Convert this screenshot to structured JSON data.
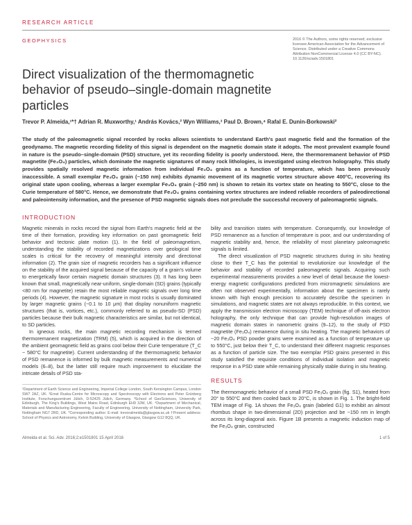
{
  "header": {
    "article_type": "RESEARCH ARTICLE",
    "section": "GEOPHYSICS",
    "rights": "2016 © The Authors, some rights reserved; exclusive licensee American Association for the Advancement of Science. Distributed under a Creative Commons Attribution NonCommercial License 4.0 (CC BY-NC). 10.1126/sciadv.1501801"
  },
  "title": "Direct visualization of the thermomagnetic behavior of pseudo–single-domain magnetite particles",
  "authors_html": "Trevor P. Almeida,¹*† Adrian R. Muxworthy,¹ András Kovács,² Wyn Williams,³ Paul D. Brown,⁴ Rafal E. Dunin-Borkowski²",
  "abstract": "The study of the paleomagnetic signal recorded by rocks allows scientists to understand Earth's past magnetic field and the formation of the geodynamo. The magnetic recording fidelity of this signal is dependent on the magnetic domain state it adopts. The most prevalent example found in nature is the pseudo–single-domain (PSD) structure, yet its recording fidelity is poorly understood. Here, the thermoremanent behavior of PSD magnetite (Fe₃O₄) particles, which dominate the magnetic signatures of many rock lithologies, is investigated using electron holography. This study provides spatially resolved magnetic information from individual Fe₃O₄ grains as a function of temperature, which has been previously inaccessible. A small exemplar Fe₃O₄ grain (~150 nm) exhibits dynamic movement of its magnetic vortex structure above 400°C, recovering its original state upon cooling, whereas a larger exemplar Fe₃O₄ grain (~250 nm) is shown to retain its vortex state on heating to 550°C, close to the Curie temperature of 580°C. Hence, we demonstrate that Fe₃O₄ grains containing vortex structures are indeed reliable recorders of paleodirectional and paleointensity information, and the presence of PSD magnetic signals does not preclude the successful recovery of paleomagnetic signals.",
  "sections": {
    "introduction": {
      "heading": "INTRODUCTION",
      "col1_p1": "Magnetic minerals in rocks record the signal from Earth's magnetic field at the time of their formation, providing key information on past geomagnetic field behavior and tectonic plate motion (1). In the field of paleomagnetism, understanding the stability of recorded magnetizations over geological time scales is critical for the recovery of meaningful intensity and directional information (2). The grain size of magnetic recorders has a significant influence on the stability of the acquired signal because of the capacity of a grain's volume to energetically favor certain magnetic domain structures (3). It has long been known that small, magnetically near-uniform, single-domain (SD) grains (typically <80 nm for magnetite) retain the most reliable magnetic signals over long time periods (4). However, the magnetic signature in most rocks is usually dominated by larger magnetic grains (~0.1 to 10 μm) that display nonuniform magnetic structures (that is, vortices, etc.), commonly referred to as pseudo-SD (PSD) particles because their bulk magnetic characteristics are similar, but not identical, to SD particles.",
      "col1_p2": "In igneous rocks, the main magnetic recording mechanism is termed thermoremanent magnetization (TRM) (5), which is acquired in the direction of the ambient geomagnetic field as grains cool below their Curie temperature (T_C ~ 580°C for magnetite). Current understanding of the thermomagnetic behavior of PSD remanence is informed by bulk magnetic measurements and numerical models (6–8), but the latter still require much improvement to elucidate the intricate details of PSD sta-",
      "col2_p1": "bility and transition states with temperature. Consequently, our knowledge of PSD remanence as a function of temperature is poor, and our understanding of magnetic stability and, hence, the reliability of most planetary paleomagnetic signals is limited.",
      "col2_p2": "The direct visualization of PSD magnetic structures during in situ heating close to their T_C has the potential to revolutionize our knowledge of the behavior and stability of recorded paleomagnetic signals. Acquiring such experimental measurements provides a new level of detail because the lowest-energy magnetic configurations predicted from micromagnetic simulations are often not observed experimentally, information about the specimen is rarely known with high enough precision to accurately describe the specimen in simulations, and magnetic states are not always reproducible. In this context, we apply the transmission electron microscopy (TEM) technique of off-axis electron holography, the only technique that can provide high-resolution images of magnetic domain states in nanometric grains (9–12), to the study of PSD magnetite (Fe₃O₄) remanence during in situ heating. The magnetic behaviors of ~20 Fe₃O₄ PSD powder grains were examined as a function of temperature up to 550°C, just below their T_C, to understand their different magnetic responses as a function of particle size. The two exemplar PSD grains presented in this study satisfied the requisite conditions of individual isolation and magnetic response in a PSD state while remaining physically stable during in situ heating."
    },
    "results": {
      "heading": "RESULTS",
      "col2_p1": "The thermomagnetic behavior of a small PSD Fe₃O₄ grain (fig. S1), heated from 20° to 550°C and then cooled back to 20°C, is shown in Fig. 1. The bright-field TEM image of Fig. 1A shows the Fe₃O₄ grain (labeled G1) to exhibit an almost rhombus shape in two-dimensional (2D) projection and be ~150 nm in length across its long-diagonal axis. Figure 1B presents a magnetic induction map of the Fe₃O₄ grain, constructed"
    }
  },
  "footnotes": "¹Department of Earth Science and Engineering, Imperial College London, South Kensington Campus, London SW7 2AZ, UK. ²Ernst Ruska-Centre for Microscopy and Spectroscopy with Electrons and Peter Grünberg Institute, Forschungszentrum Jülich, D-52425 Jülich, Germany. ³School of GeoSciences, University of Edinburgh, The King's Buildings, West Mains Road, Edinburgh EH9 3JW, UK. ⁴Department of Mechanical, Materials and Manufacturing Engineering, Faculty of Engineering, University of Nottingham, University Park, Nottingham NG7 2RD, UK.\n*Corresponding author. E-mail: trevoralmeida@glasgow.ac.uk\n†Present address: School of Physics and Astronomy, Kelvin Building, University of Glasgow, Glasgow G12 8QQ, UK.",
  "footer": {
    "left": "Almeida et al. Sci. Adv. 2016;2:e1501801    15 April 2016",
    "right": "1 of 5"
  },
  "colors": {
    "accent": "#c41e3a",
    "text": "#333333",
    "muted": "#666666",
    "background": "#ffffff"
  },
  "typography": {
    "title_fontsize": 18,
    "body_fontsize": 7.2,
    "abstract_fontsize": 7.5,
    "label_fontsize": 8
  }
}
